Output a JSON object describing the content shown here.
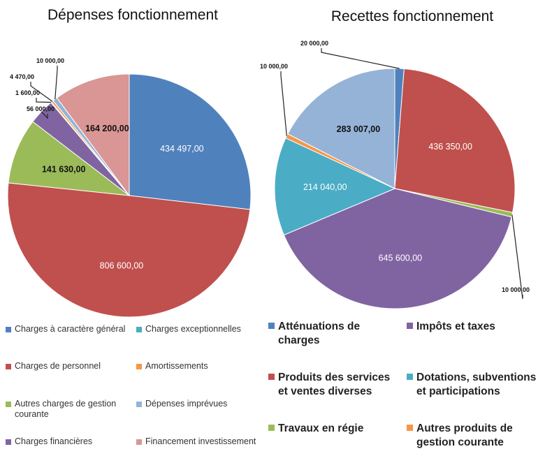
{
  "chart_data": [
    {
      "type": "pie",
      "title": "Dépenses fonctionnement",
      "categories": [
        "Charges à caractère général",
        "Charges de personnel",
        "Autres charges de gestion courante",
        "Charges financières",
        "Charges exceptionnelles",
        "Amortissements",
        "Dépenses imprévues",
        "Financement investissement"
      ],
      "values": [
        434497,
        806600,
        141630,
        56000,
        1600,
        4470,
        10000,
        164200
      ],
      "value_labels": [
        "434 497,00",
        "806 600,00",
        "141 630,00",
        "56 000,00",
        "1 600,00",
        "4 470,00",
        "10 000,00",
        "164 200,00"
      ],
      "colors": [
        "#4f81bd",
        "#c0504d",
        "#9bbb59",
        "#8064a2",
        "#4bacc6",
        "#f79646",
        "#95b3d7",
        "#d99694"
      ]
    },
    {
      "type": "pie",
      "title": "Recettes fonctionnement",
      "categories": [
        "Atténuations de charges",
        "Produits des services et ventes diverses",
        "Travaux en régie",
        "Impôts et taxes",
        "Dotations, subventions et participations",
        "Autres produits de gestion courante",
        null
      ],
      "values": [
        20000,
        436350,
        10000,
        645600,
        214040,
        10000,
        283007
      ],
      "value_labels": [
        "20 000,00",
        "436 350,00",
        "10 000,00",
        "645 600,00",
        "214 040,00",
        "10 000,00",
        "283 007,00"
      ],
      "colors": [
        "#4f81bd",
        "#c0504d",
        "#9bbb59",
        "#8064a2",
        "#4bacc6",
        "#f79646",
        "#95b3d7"
      ]
    }
  ]
}
